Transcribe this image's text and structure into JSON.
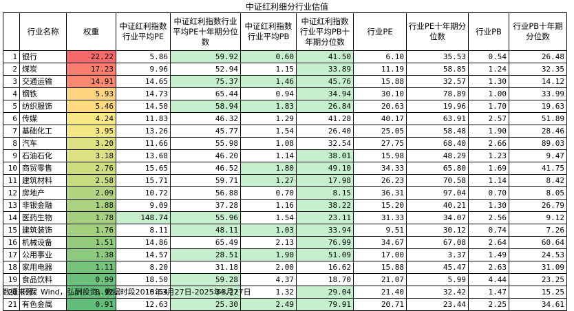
{
  "title": "中证红利细分行业估值",
  "source": "数据来源：Wind，弘酬投资，数据时段2015年3月27日-2025年3月27日",
  "columns": [
    "",
    "行业名称",
    "权重",
    "中证红利指数行业平均PE",
    "中证红利指数行业平均PE十年期分位数",
    "中证红利指数行业平均PB",
    "中证红利指数行业平均PB十年期分位数",
    "行业PE",
    "行业PE十年期分位数",
    "行业PB",
    "行业PB十年期分位数"
  ],
  "highlight_colors": {
    "green": "#c6efce",
    "scale_high": "#f8696b",
    "scale_mid": "#ffeb84",
    "scale_low": "#63be7b"
  },
  "rows": [
    {
      "idx": "1",
      "name": "银行",
      "weight": "22.22",
      "pe": "5.86",
      "pe_pct": "59.92",
      "pb": "0.60",
      "pb_pct": "41.50",
      "ind_pe": "6.10",
      "ind_pe_pct": "35.53",
      "ind_pb": "0.54",
      "ind_pb_pct": "26.48",
      "hl": [
        false,
        true,
        true,
        true
      ]
    },
    {
      "idx": "2",
      "name": "煤炭",
      "weight": "17.23",
      "pe": "9.96",
      "pe_pct": "52.94",
      "pb": "1.15",
      "pb_pct": "33.89",
      "ind_pe": "11.19",
      "ind_pe_pct": "58.85",
      "ind_pb": "1.24",
      "ind_pb_pct": "32.35",
      "hl": [
        false,
        false,
        false,
        true
      ]
    },
    {
      "idx": "3",
      "name": "交通运输",
      "weight": "14.91",
      "pe": "14.65",
      "pe_pct": "75.37",
      "pb": "1.46",
      "pb_pct": "45.76",
      "ind_pe": "15.88",
      "ind_pe_pct": "32.57",
      "ind_pb": "1.30",
      "ind_pb_pct": "14.12",
      "hl": [
        false,
        true,
        true,
        true
      ]
    },
    {
      "idx": "4",
      "name": "钢铁",
      "weight": "5.93",
      "pe": "14.73",
      "pe_pct": "65.44",
      "pb": "0.94",
      "pb_pct": "34.94",
      "ind_pe": "30.10",
      "ind_pe_pct": "78.89",
      "ind_pb": "1.00",
      "ind_pb_pct": "33.99",
      "hl": [
        false,
        false,
        false,
        true
      ]
    },
    {
      "idx": "5",
      "name": "纺织服饰",
      "weight": "5.46",
      "pe": "14.50",
      "pe_pct": "58.94",
      "pb": "1.83",
      "pb_pct": "26.84",
      "ind_pe": "20.63",
      "ind_pe_pct": "19.96",
      "ind_pb": "1.70",
      "ind_pb_pct": "19.63",
      "hl": [
        false,
        true,
        true,
        true
      ]
    },
    {
      "idx": "6",
      "name": "传媒",
      "weight": "4.24",
      "pe": "11.83",
      "pe_pct": "46.32",
      "pb": "1.29",
      "pb_pct": "41.28",
      "ind_pe": "40.17",
      "ind_pe_pct": "63.91",
      "ind_pb": "2.57",
      "ind_pb_pct": "51.89",
      "hl": [
        false,
        false,
        false,
        false
      ]
    },
    {
      "idx": "7",
      "name": "基础化工",
      "weight": "3.95",
      "pe": "13.26",
      "pe_pct": "45.77",
      "pb": "1.54",
      "pb_pct": "26.40",
      "ind_pe": "25.05",
      "ind_pe_pct": "58.48",
      "ind_pb": "1.90",
      "ind_pb_pct": "28.46",
      "hl": [
        false,
        false,
        false,
        false
      ]
    },
    {
      "idx": "8",
      "name": "汽车",
      "weight": "3.20",
      "pe": "11.66",
      "pe_pct": "55.98",
      "pb": "1.08",
      "pb_pct": "32.54",
      "ind_pe": "27.75",
      "ind_pe_pct": "68.40",
      "ind_pb": "2.66",
      "ind_pb_pct": "89.03",
      "hl": [
        false,
        false,
        false,
        false
      ]
    },
    {
      "idx": "9",
      "name": "石油石化",
      "weight": "3.18",
      "pe": "13.68",
      "pe_pct": "46.20",
      "pb": "1.14",
      "pb_pct": "38.01",
      "ind_pe": "15.98",
      "ind_pe_pct": "48.29",
      "ind_pb": "1.23",
      "ind_pb_pct": "9.47",
      "hl": [
        false,
        false,
        false,
        true
      ]
    },
    {
      "idx": "10",
      "name": "商贸零售",
      "weight": "2.76",
      "pe": "15.65",
      "pe_pct": "46.52",
      "pb": "1.80",
      "pb_pct": "49.10",
      "ind_pe": "34.33",
      "ind_pe_pct": "65.80",
      "ind_pb": "1.69",
      "ind_pb_pct": "41.75",
      "hl": [
        false,
        false,
        true,
        true
      ]
    },
    {
      "idx": "11",
      "name": "建筑材料",
      "weight": "2.58",
      "pe": "15.71",
      "pe_pct": "59.71",
      "pb": "1.27",
      "pb_pct": "17.98",
      "ind_pe": "26.23",
      "ind_pe_pct": "70.58",
      "ind_pb": "1.14",
      "ind_pb_pct": "8.42",
      "hl": [
        false,
        false,
        true,
        true
      ]
    },
    {
      "idx": "12",
      "name": "房地产",
      "weight": "2.09",
      "pe": "10.72",
      "pe_pct": "56.88",
      "pb": "0.70",
      "pb_pct": "8.15",
      "ind_pe": "36.31",
      "ind_pe_pct": "97.04",
      "ind_pb": "0.70",
      "ind_pb_pct": "8.05",
      "hl": [
        false,
        false,
        false,
        true
      ]
    },
    {
      "idx": "13",
      "name": "非银金融",
      "weight": "1.88",
      "pe": "9.09",
      "pe_pct": "37.28",
      "pb": "1.16",
      "pb_pct": "38.22",
      "ind_pe": "15.20",
      "ind_pe_pct": "40.21",
      "ind_pb": "1.30",
      "ind_pb_pct": "26.79",
      "hl": [
        false,
        false,
        false,
        true
      ]
    },
    {
      "idx": "14",
      "name": "医药生物",
      "weight": "1.78",
      "pe": "148.74",
      "pe_pct": "55.96",
      "pb": "1.54",
      "pb_pct": "23.11",
      "ind_pe": "31.33",
      "ind_pe_pct": "34.07",
      "ind_pb": "2.56",
      "ind_pb_pct": "9.12",
      "hl": [
        true,
        true,
        false,
        true
      ]
    },
    {
      "idx": "15",
      "name": "建筑装饰",
      "weight": "1.76",
      "pe": "8.11",
      "pe_pct": "48.11",
      "pb": "1.03",
      "pb_pct": "33.94",
      "ind_pe": "9.51",
      "ind_pe_pct": "30.12",
      "ind_pb": "0.74",
      "ind_pb_pct": "7.26",
      "hl": [
        false,
        true,
        true,
        true
      ]
    },
    {
      "idx": "16",
      "name": "机械设备",
      "weight": "1.51",
      "pe": "14.86",
      "pe_pct": "65.49",
      "pb": "2.13",
      "pb_pct": "76.99",
      "ind_pe": "34.67",
      "ind_pe_pct": "67.08",
      "ind_pb": "2.64",
      "ind_pb_pct": "60.64",
      "hl": [
        false,
        false,
        false,
        true
      ]
    },
    {
      "idx": "17",
      "name": "公用事业",
      "weight": "1.38",
      "pe": "14.57",
      "pe_pct": "28.51",
      "pb": "1.90",
      "pb_pct": "51.09",
      "ind_pe": "17.00",
      "ind_pe_pct": "3.37",
      "ind_pb": "1.49",
      "ind_pb_pct": "24.53",
      "hl": [
        false,
        true,
        true,
        true
      ]
    },
    {
      "idx": "18",
      "name": "家用电器",
      "weight": "1.11",
      "pe": "8.20",
      "pe_pct": "31.18",
      "pb": "2.00",
      "pb_pct": "16.62",
      "ind_pe": "15.88",
      "ind_pe_pct": "45.47",
      "ind_pb": "2.63",
      "ind_pb_pct": "31.09",
      "hl": [
        false,
        false,
        false,
        false
      ]
    },
    {
      "idx": "19",
      "name": "食品饮料",
      "weight": "0.99",
      "pe": "18.50",
      "pe_pct": "59.28",
      "pb": "4.37",
      "pb_pct": "18.70",
      "ind_pe": "21.07",
      "ind_pe_pct": "5.99",
      "ind_pb": "4.44",
      "ind_pb_pct": "23.25",
      "hl": [
        false,
        true,
        false,
        false
      ]
    },
    {
      "idx": "20",
      "name": "环保",
      "weight": "0.92",
      "pe": "10.54",
      "pe_pct": "34.27",
      "pb": "1.32",
      "pb_pct": "29.04",
      "ind_pe": "21.40",
      "ind_pe_pct": "32.42",
      "ind_pb": "1.47",
      "ind_pb_pct": "15.25",
      "hl": [
        false,
        true,
        false,
        true
      ]
    },
    {
      "idx": "21",
      "name": "有色金属",
      "weight": "0.91",
      "pe": "12.63",
      "pe_pct": "25.30",
      "pb": "2.49",
      "pb_pct": "79.91",
      "ind_pe": "20.71",
      "ind_pe_pct": "23.44",
      "ind_pb": "2.25",
      "ind_pb_pct": "34.61",
      "hl": [
        false,
        true,
        true,
        true
      ]
    }
  ]
}
